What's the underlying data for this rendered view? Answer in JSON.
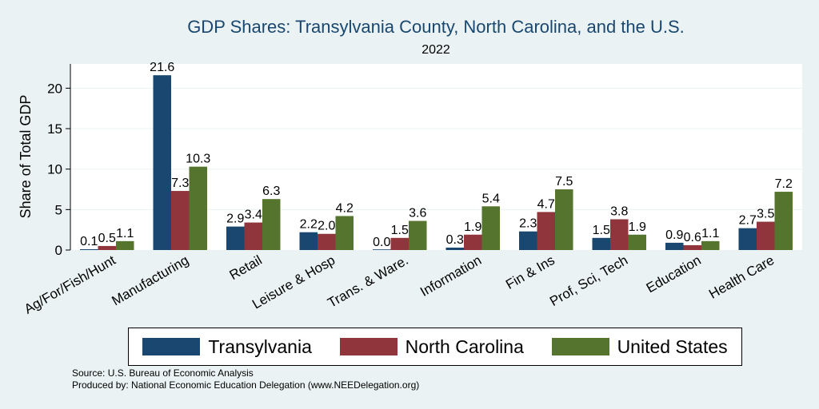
{
  "chart_data": {
    "type": "bar",
    "title": "GDP Shares: Transylvania County, North Carolina, and the U.S.",
    "subtitle": "2022",
    "xlabel": "",
    "ylabel": "Share of Total GDP",
    "ylim": [
      0,
      23
    ],
    "yticks": [
      0,
      5,
      10,
      15,
      20
    ],
    "grid": true,
    "legend_position": "bottom",
    "categories": [
      "Ag/For/Fish/Hunt",
      "Manufacturing",
      "Retail",
      "Leisure & Hosp",
      "Trans. & Ware.",
      "Information",
      "Fin & Ins",
      "Prof, Sci, Tech",
      "Education",
      "Health Care"
    ],
    "series": [
      {
        "name": "Transylvania",
        "color": "#1a476f",
        "values": [
          0.1,
          21.6,
          2.9,
          2.2,
          0.0,
          0.3,
          2.3,
          1.5,
          0.9,
          2.7
        ]
      },
      {
        "name": "North Carolina",
        "color": "#90353b",
        "values": [
          0.5,
          7.3,
          3.4,
          2.0,
          1.5,
          1.9,
          4.7,
          3.8,
          0.6,
          3.5
        ]
      },
      {
        "name": "United States",
        "color": "#55752f",
        "values": [
          1.1,
          10.3,
          6.3,
          4.2,
          3.6,
          5.4,
          7.5,
          1.9,
          1.1,
          7.2
        ]
      }
    ]
  },
  "source": {
    "line1": "Source: U.S. Bureau of Economic Analysis",
    "line2": "Produced by: National Economic Education Delegation (www.NEEDelegation.org)"
  },
  "colors": {
    "background": "#eaf2f3",
    "plot_background": "#ffffff",
    "title": "#1a476f"
  }
}
